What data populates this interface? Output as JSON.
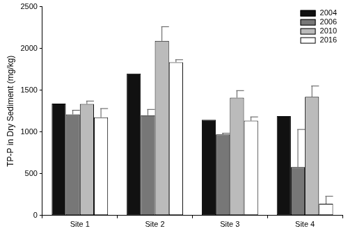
{
  "chart_data": {
    "type": "bar",
    "y_label": "TP-P in Dry Sediment (mg/kg)",
    "categories": [
      "Site 1",
      "Site 2",
      "Site 3",
      "Site 4"
    ],
    "series": [
      {
        "name": "2004",
        "color": "#111111",
        "values": [
          1340,
          1700,
          1145,
          1190
        ]
      },
      {
        "name": "2006",
        "color": "#777777",
        "values": [
          1210,
          1200,
          970,
          580
        ],
        "errors": [
          50,
          70,
          15,
          450
        ]
      },
      {
        "name": "2010",
        "color": "#bbbbbb",
        "values": [
          1335,
          2090,
          1410,
          1420
        ],
        "errors": [
          35,
          170,
          85,
          130
        ]
      },
      {
        "name": "2016",
        "color": "#ffffff",
        "values": [
          1175,
          1835,
          1135,
          140
        ],
        "errors": [
          105,
          30,
          45,
          90
        ]
      }
    ],
    "ylim": [
      0,
      2500
    ],
    "yticks": [
      0,
      500,
      1000,
      1500,
      2000,
      2500
    ],
    "grid": false,
    "legend": "upper right"
  }
}
